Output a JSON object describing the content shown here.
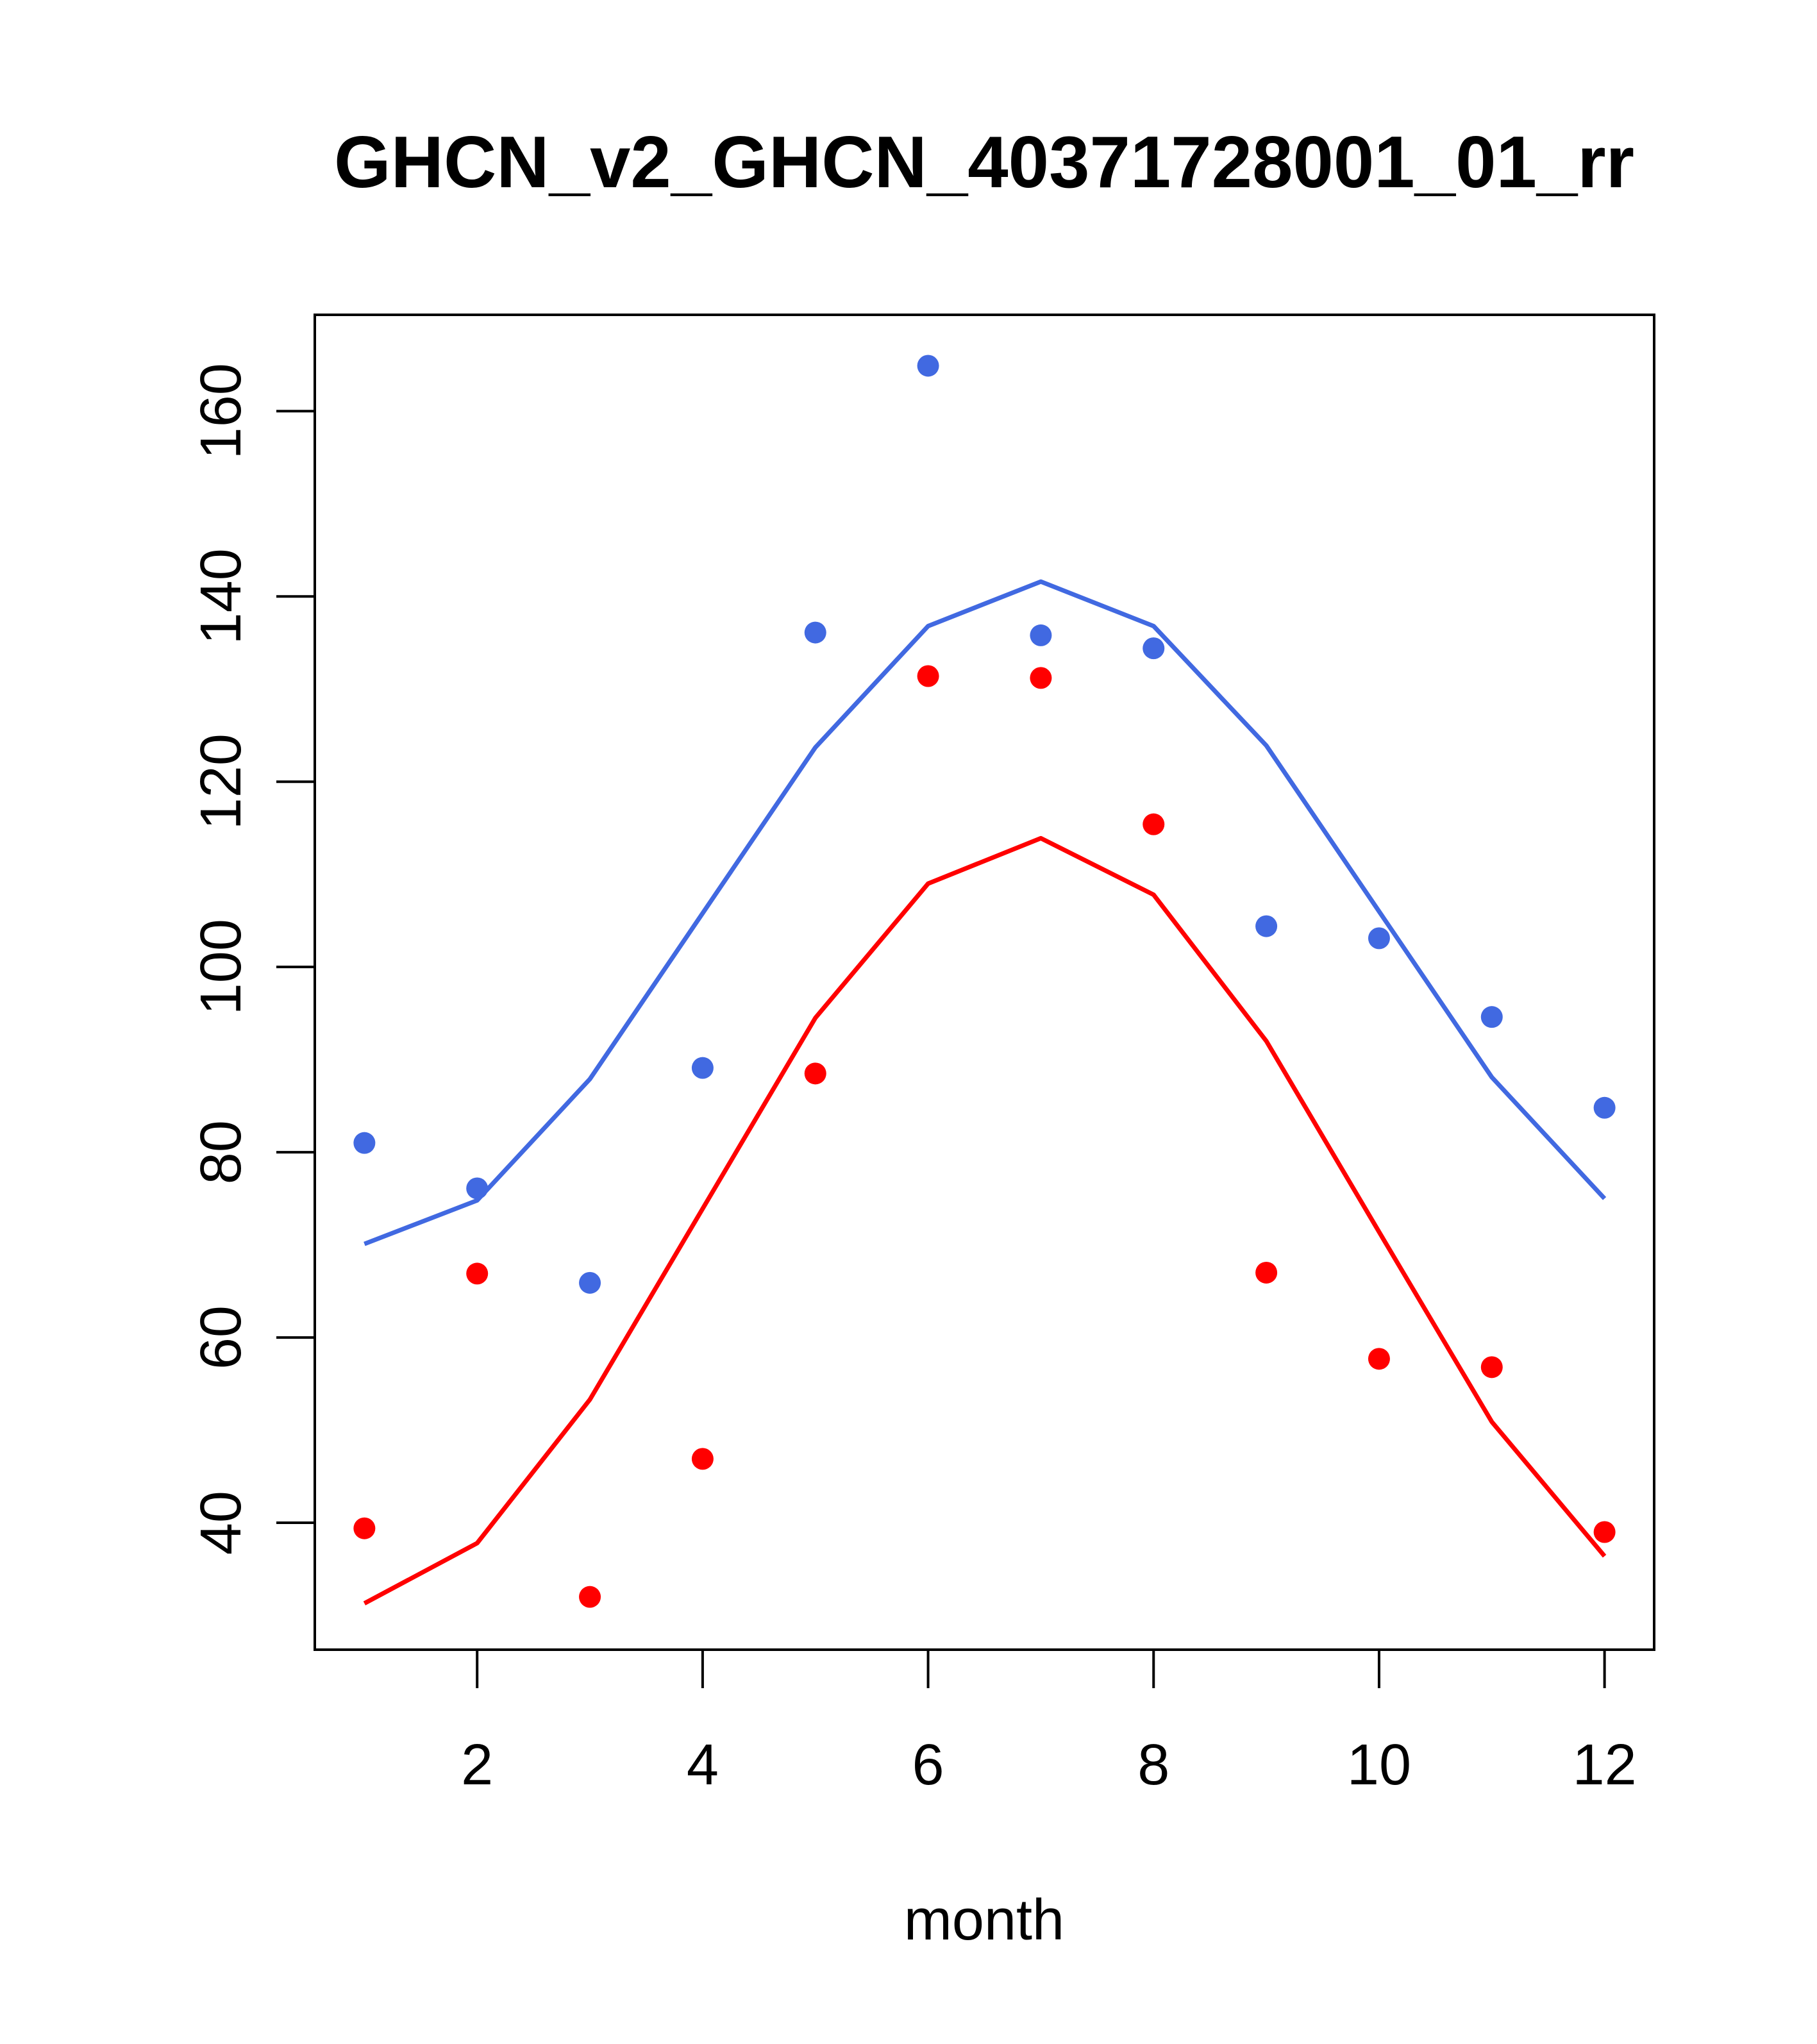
{
  "chart_data": {
    "type": "scatter",
    "title": "GHCN_v2_GHCN_40371728001_01_rr",
    "xlabel": "month",
    "ylabel": "",
    "xlim": [
      0.56,
      12.44
    ],
    "ylim": [
      26.3,
      170.4
    ],
    "x_ticks": [
      2,
      4,
      6,
      8,
      10,
      12
    ],
    "x_tick_labels": [
      "2",
      "4",
      "6",
      "8",
      "10",
      "12"
    ],
    "y_ticks": [
      40,
      60,
      80,
      100,
      120,
      140,
      160
    ],
    "y_tick_labels": [
      "40",
      "60",
      "80",
      "100",
      "120",
      "140",
      "160"
    ],
    "x": [
      1,
      2,
      3,
      4,
      5,
      6,
      7,
      8,
      9,
      10,
      11,
      12
    ],
    "series": [
      {
        "name": "blue points",
        "kind": "points",
        "color": "#4169E1",
        "values": [
          81.0,
          76.1,
          65.9,
          89.1,
          136.1,
          164.9,
          135.8,
          134.4,
          104.4,
          103.1,
          94.6,
          84.8
        ]
      },
      {
        "name": "blue line",
        "kind": "line",
        "color": "#4169E1",
        "values": [
          70.1,
          74.8,
          87.9,
          105.8,
          123.7,
          136.8,
          141.6,
          136.8,
          123.9,
          106.0,
          88.1,
          75.0
        ]
      },
      {
        "name": "red points",
        "kind": "points",
        "color": "#FF0000",
        "values": [
          39.4,
          66.9,
          32.0,
          46.9,
          88.5,
          131.4,
          131.2,
          115.4,
          67.0,
          57.7,
          56.8,
          39.0
        ]
      },
      {
        "name": "red line",
        "kind": "line",
        "color": "#FF0000",
        "values": [
          31.3,
          37.8,
          53.3,
          73.9,
          94.5,
          109.0,
          113.9,
          107.8,
          92.0,
          71.4,
          50.9,
          36.4
        ]
      }
    ]
  }
}
